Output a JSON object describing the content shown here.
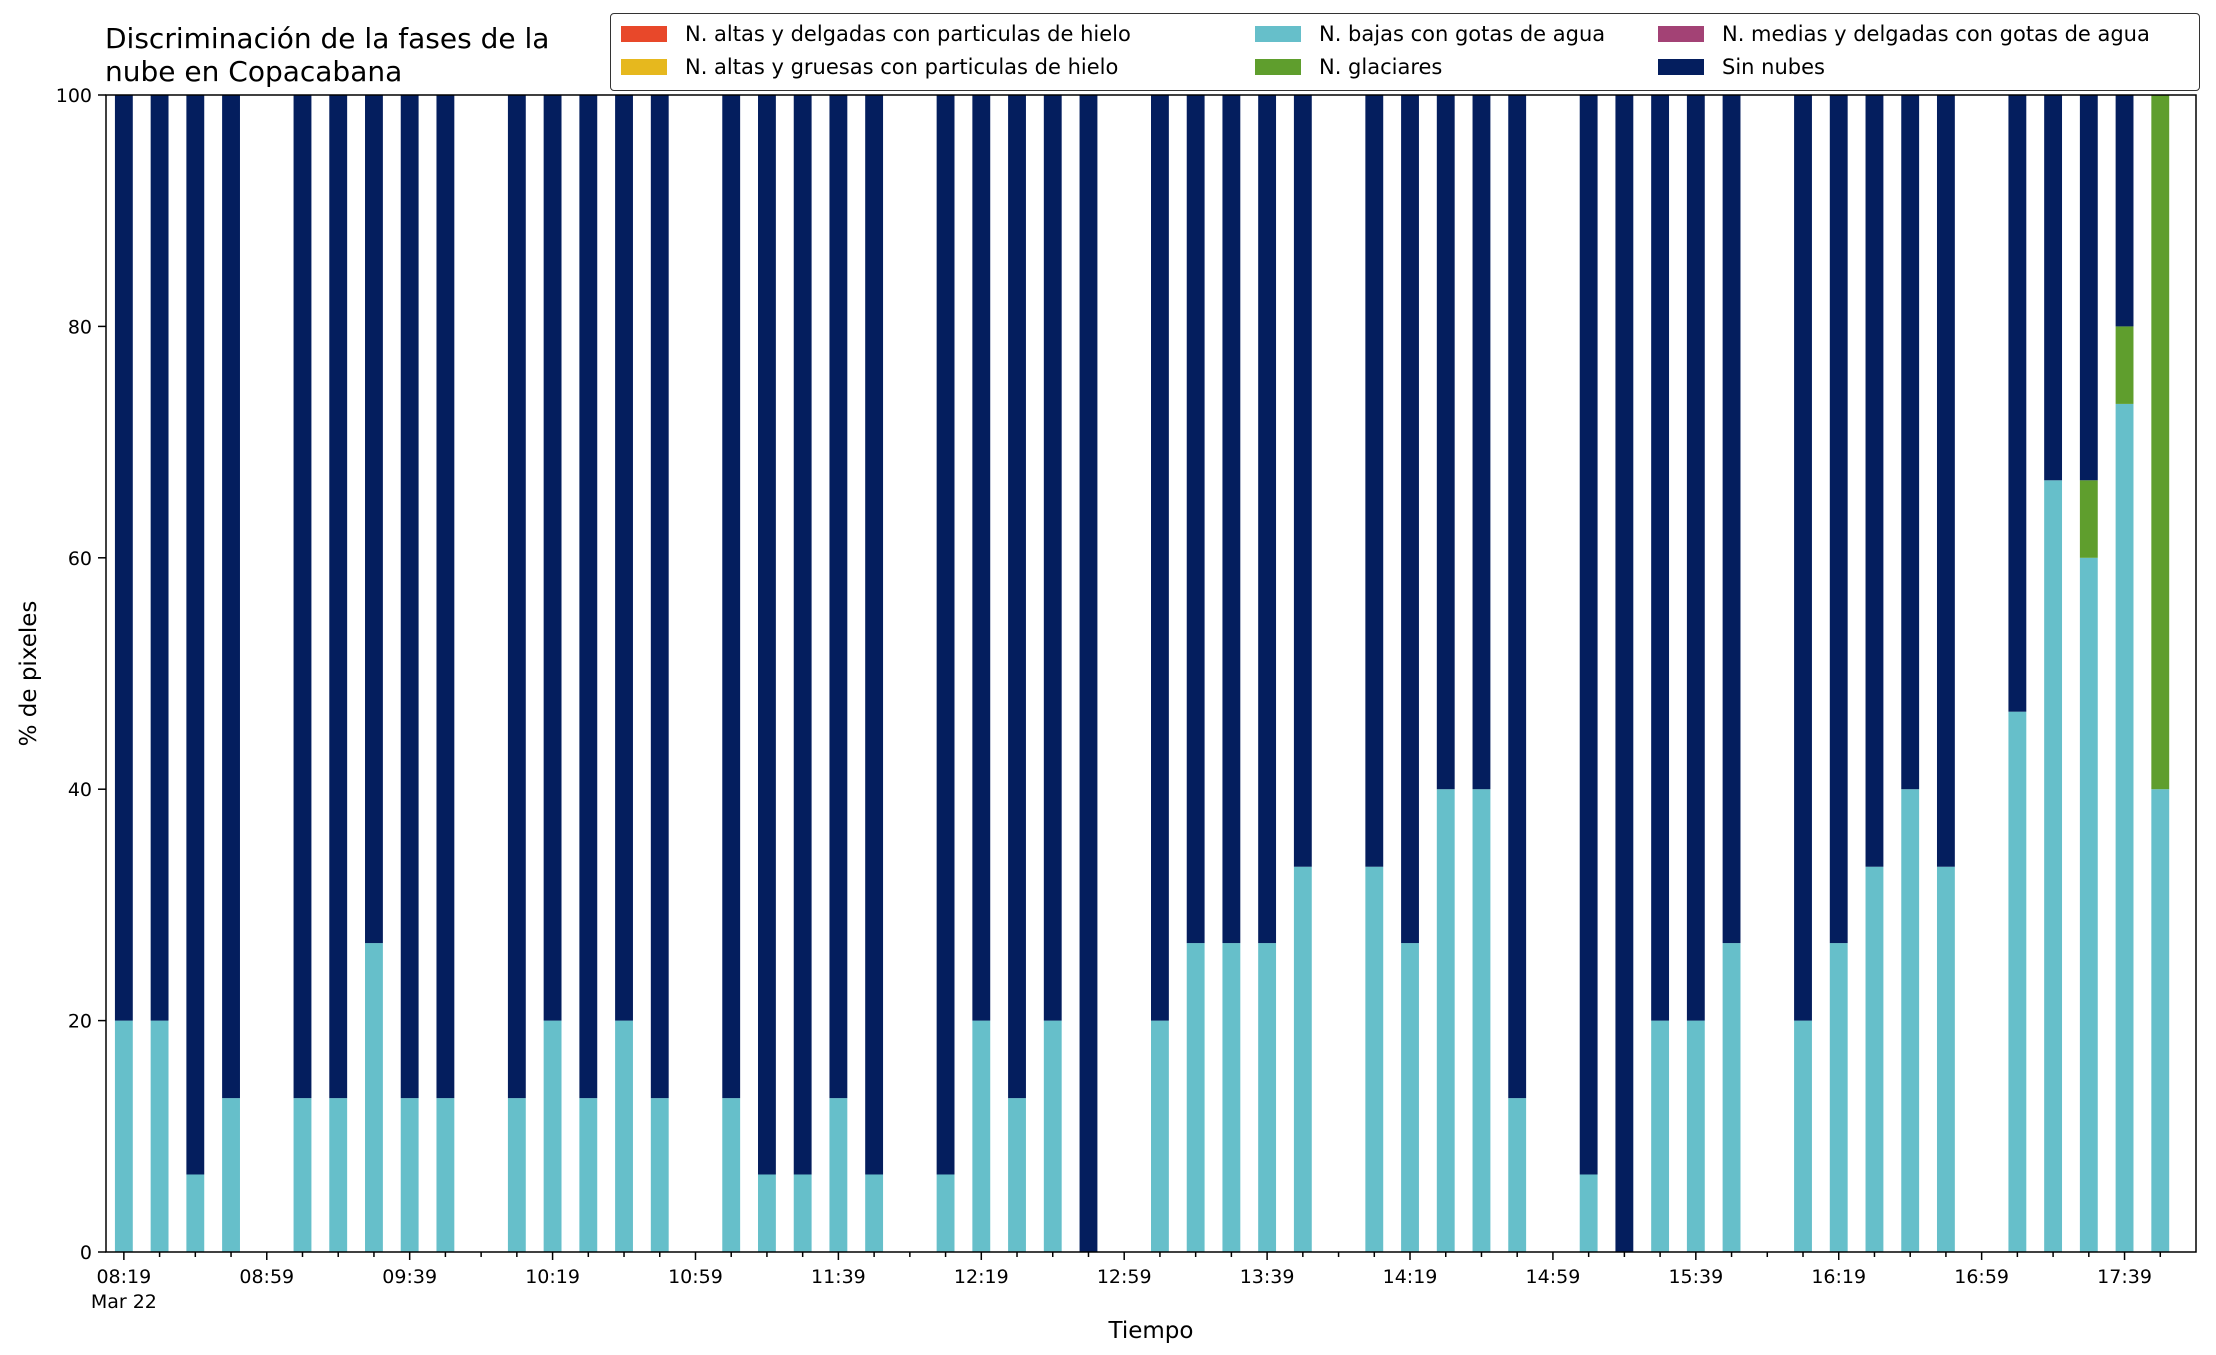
{
  "chart_data": {
    "type": "bar",
    "stacked": true,
    "title": "Discriminación de la fases de la nube en Copacabana",
    "title_lines": [
      "Discriminación de la fases de la",
      "nube en Copacabana"
    ],
    "xlabel": "Tiempo",
    "ylabel": "% de pixeles",
    "ylim": [
      0,
      100
    ],
    "yticks": [
      0,
      20,
      40,
      60,
      80,
      100
    ],
    "date_label": "Mar 22",
    "x_tick_labels": [
      "08:19",
      "08:59",
      "09:39",
      "10:19",
      "10:59",
      "11:39",
      "12:19",
      "12:59",
      "13:39",
      "14:19",
      "14:59",
      "15:39",
      "16:19",
      "16:59",
      "17:39"
    ],
    "legend_position": "top-right",
    "legend": [
      {
        "name": "N. altas y delgadas con particulas de hielo",
        "color": "#e8482a"
      },
      {
        "name": "N. altas y gruesas con particulas de hielo",
        "color": "#e6b81e"
      },
      {
        "name": "N. bajas con gotas de agua",
        "color": "#66bfca"
      },
      {
        "name": "N. glaciares",
        "color": "#5f9e2d"
      },
      {
        "name": "N. medias y delgadas con gotas de agua",
        "color": "#a34275"
      },
      {
        "name": "Sin nubes",
        "color": "#041e5e"
      }
    ],
    "categories": [
      "08:19",
      "08:29",
      "08:39",
      "08:49",
      "08:59",
      "09:09",
      "09:19",
      "09:29",
      "09:39",
      "09:49",
      "09:59",
      "10:09",
      "10:19",
      "10:29",
      "10:39",
      "10:49",
      "10:59",
      "11:09",
      "11:19",
      "11:29",
      "11:39",
      "11:49",
      "11:59",
      "12:09",
      "12:19",
      "12:29",
      "12:39",
      "12:49",
      "12:59",
      "13:09",
      "13:19",
      "13:29",
      "13:39",
      "13:49",
      "13:59",
      "14:09",
      "14:19",
      "14:29",
      "14:39",
      "14:49",
      "14:59",
      "15:09",
      "15:19",
      "15:29",
      "15:39",
      "15:49",
      "15:59",
      "16:09",
      "16:19",
      "16:29",
      "16:39",
      "16:49",
      "16:59",
      "17:09",
      "17:19",
      "17:29",
      "17:39",
      "17:49"
    ],
    "series": [
      {
        "name": "N. bajas con gotas de agua",
        "color": "#66bfca",
        "values": [
          20,
          20,
          6.7,
          13.3,
          null,
          13.3,
          13.3,
          26.7,
          13.3,
          13.3,
          null,
          13.3,
          20,
          13.3,
          20,
          13.3,
          null,
          13.3,
          6.7,
          6.7,
          13.3,
          6.7,
          null,
          6.7,
          20,
          13.3,
          20,
          0,
          null,
          20,
          26.7,
          26.7,
          26.7,
          33.3,
          null,
          33.3,
          26.7,
          40,
          40,
          13.3,
          null,
          6.7,
          0,
          20,
          20,
          26.7,
          null,
          20,
          26.7,
          33.3,
          40,
          33.3,
          null,
          46.7,
          66.7,
          60,
          73.3,
          40
        ]
      },
      {
        "name": "N. glaciares",
        "color": "#5f9e2d",
        "values": [
          0,
          0,
          0,
          0,
          null,
          0,
          0,
          0,
          0,
          0,
          null,
          0,
          0,
          0,
          0,
          0,
          null,
          0,
          0,
          0,
          0,
          0,
          null,
          0,
          0,
          0,
          0,
          0,
          null,
          0,
          0,
          0,
          0,
          0,
          null,
          0,
          0,
          0,
          0,
          0,
          null,
          0,
          0,
          0,
          0,
          0,
          null,
          0,
          0,
          0,
          0,
          0,
          null,
          0,
          0,
          6.7,
          6.7,
          60
        ]
      },
      {
        "name": "Sin nubes",
        "color": "#041e5e",
        "values": [
          80,
          80,
          93.3,
          86.7,
          null,
          86.7,
          86.7,
          73.3,
          86.7,
          86.7,
          null,
          86.7,
          80,
          86.7,
          80,
          86.7,
          null,
          86.7,
          93.3,
          93.3,
          86.7,
          93.3,
          null,
          93.3,
          80,
          86.7,
          80,
          100,
          null,
          80,
          73.3,
          73.3,
          73.3,
          66.7,
          null,
          66.7,
          73.3,
          60,
          60,
          86.7,
          null,
          93.3,
          100,
          80,
          80,
          73.3,
          null,
          80,
          73.3,
          66.7,
          60,
          66.7,
          null,
          53.3,
          33.3,
          33.3,
          20,
          0
        ]
      }
    ]
  }
}
